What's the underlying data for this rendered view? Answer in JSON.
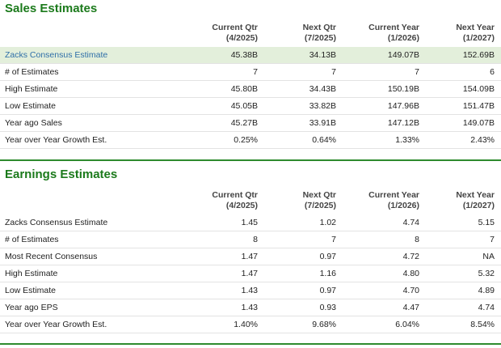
{
  "sales": {
    "title": "Sales Estimates",
    "headers": [
      {
        "line1": "Current Qtr",
        "line2": "(4/2025)"
      },
      {
        "line1": "Next Qtr",
        "line2": "(7/2025)"
      },
      {
        "line1": "Current Year",
        "line2": "(1/2026)"
      },
      {
        "line1": "Next Year",
        "line2": "(1/2027)"
      }
    ],
    "rows": [
      {
        "label": "Zacks Consensus Estimate",
        "values": [
          "45.38B",
          "34.13B",
          "149.07B",
          "152.69B"
        ]
      },
      {
        "label": "# of Estimates",
        "values": [
          "7",
          "7",
          "7",
          "6"
        ]
      },
      {
        "label": "High Estimate",
        "values": [
          "45.80B",
          "34.43B",
          "150.19B",
          "154.09B"
        ]
      },
      {
        "label": "Low Estimate",
        "values": [
          "45.05B",
          "33.82B",
          "147.96B",
          "151.47B"
        ]
      },
      {
        "label": "Year ago Sales",
        "values": [
          "45.27B",
          "33.91B",
          "147.12B",
          "149.07B"
        ]
      },
      {
        "label": "Year over Year Growth Est.",
        "values": [
          "0.25%",
          "0.64%",
          "1.33%",
          "2.43%"
        ]
      }
    ]
  },
  "earnings": {
    "title": "Earnings Estimates",
    "headers": [
      {
        "line1": "Current Qtr",
        "line2": "(4/2025)"
      },
      {
        "line1": "Next Qtr",
        "line2": "(7/2025)"
      },
      {
        "line1": "Current Year",
        "line2": "(1/2026)"
      },
      {
        "line1": "Next Year",
        "line2": "(1/2027)"
      }
    ],
    "rows": [
      {
        "label": "Zacks Consensus Estimate",
        "values": [
          "1.45",
          "1.02",
          "4.74",
          "5.15"
        ]
      },
      {
        "label": "# of Estimates",
        "values": [
          "8",
          "7",
          "8",
          "7"
        ]
      },
      {
        "label": "Most Recent Consensus",
        "values": [
          "1.47",
          "0.97",
          "4.72",
          "NA"
        ]
      },
      {
        "label": "High Estimate",
        "values": [
          "1.47",
          "1.16",
          "4.80",
          "5.32"
        ]
      },
      {
        "label": "Low Estimate",
        "values": [
          "1.43",
          "0.97",
          "4.70",
          "4.89"
        ]
      },
      {
        "label": "Year ago EPS",
        "values": [
          "1.43",
          "0.93",
          "4.47",
          "4.74"
        ]
      },
      {
        "label": "Year over Year Growth Est.",
        "values": [
          "1.40%",
          "9.68%",
          "6.04%",
          "8.54%"
        ]
      }
    ]
  },
  "colors": {
    "title_green": "#1b7a1b",
    "rule_green": "#2e8b2e",
    "highlight_bg": "#e3efdb",
    "link_blue": "#2f6fa8"
  }
}
